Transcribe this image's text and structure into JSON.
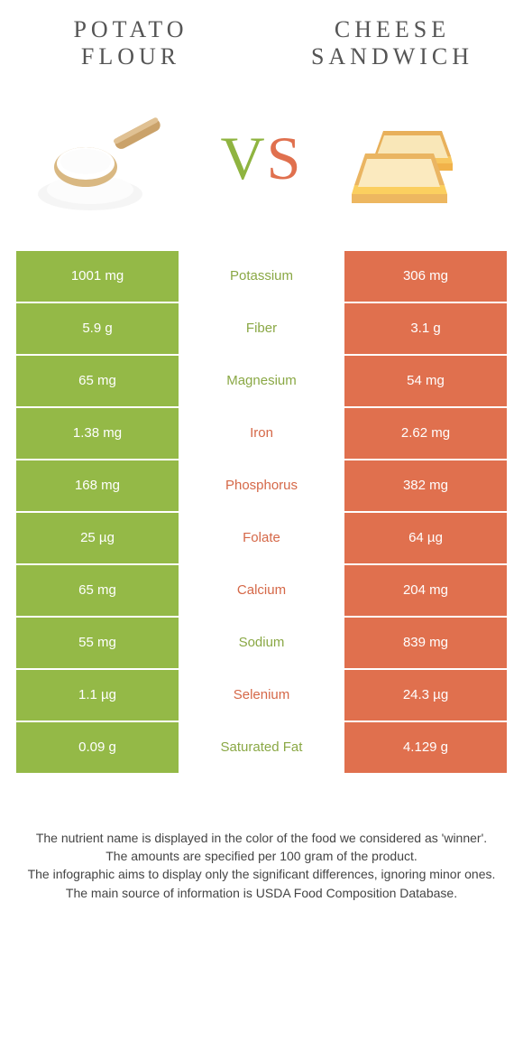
{
  "colors": {
    "left": "#94b947",
    "right": "#e0704e",
    "left_text": "#8aa845",
    "right_text": "#d56848"
  },
  "titles": {
    "left": "POTATO FLOUR",
    "right": "CHEESE SANDWICH"
  },
  "vs": {
    "v": "V",
    "s": "S"
  },
  "rows": [
    {
      "left": "1001 mg",
      "name": "Potassium",
      "right": "306 mg",
      "winner": "left"
    },
    {
      "left": "5.9 g",
      "name": "Fiber",
      "right": "3.1 g",
      "winner": "left"
    },
    {
      "left": "65 mg",
      "name": "Magnesium",
      "right": "54 mg",
      "winner": "left"
    },
    {
      "left": "1.38 mg",
      "name": "Iron",
      "right": "2.62 mg",
      "winner": "right"
    },
    {
      "left": "168 mg",
      "name": "Phosphorus",
      "right": "382 mg",
      "winner": "right"
    },
    {
      "left": "25 µg",
      "name": "Folate",
      "right": "64 µg",
      "winner": "right"
    },
    {
      "left": "65 mg",
      "name": "Calcium",
      "right": "204 mg",
      "winner": "right"
    },
    {
      "left": "55 mg",
      "name": "Sodium",
      "right": "839 mg",
      "winner": "left"
    },
    {
      "left": "1.1 µg",
      "name": "Selenium",
      "right": "24.3 µg",
      "winner": "right"
    },
    {
      "left": "0.09 g",
      "name": "Saturated Fat",
      "right": "4.129 g",
      "winner": "left"
    }
  ],
  "footer": {
    "l1": "The nutrient name is displayed in the color of the food we considered as 'winner'.",
    "l2": "The amounts are specified per 100 gram of the product.",
    "l3": "The infographic aims to display only the significant differences, ignoring minor ones.",
    "l4": "The main source of information is USDA Food Composition Database."
  }
}
